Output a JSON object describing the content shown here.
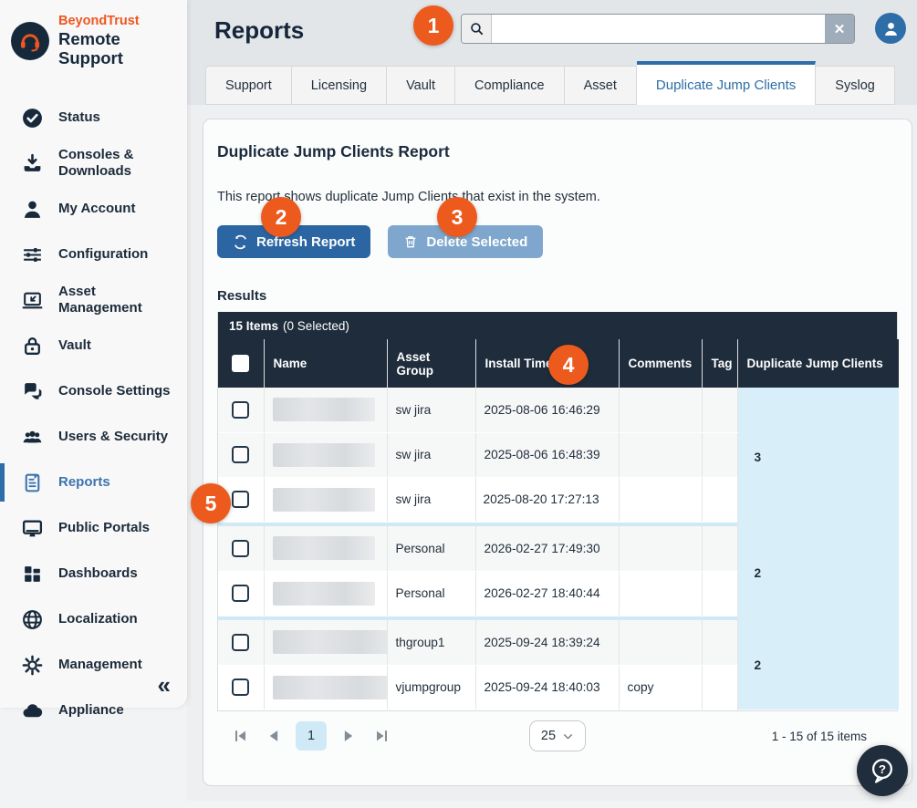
{
  "brand": {
    "line1": "BeyondTrust",
    "line2": "Remote Support"
  },
  "sidebar": {
    "items": [
      {
        "label": "Status",
        "icon": "status"
      },
      {
        "label": "Consoles & Downloads",
        "icon": "downloads"
      },
      {
        "label": "My Account",
        "icon": "account"
      },
      {
        "label": "Configuration",
        "icon": "configuration"
      },
      {
        "label": "Asset Management",
        "icon": "asset-management"
      },
      {
        "label": "Vault",
        "icon": "vault"
      },
      {
        "label": "Console Settings",
        "icon": "console-settings"
      },
      {
        "label": "Users & Security",
        "icon": "users-security"
      },
      {
        "label": "Reports",
        "icon": "reports",
        "active": true
      },
      {
        "label": "Public Portals",
        "icon": "public-portals"
      },
      {
        "label": "Dashboards",
        "icon": "dashboards"
      },
      {
        "label": "Localization",
        "icon": "localization"
      },
      {
        "label": "Management",
        "icon": "management"
      },
      {
        "label": "Appliance",
        "icon": "appliance"
      }
    ],
    "collapse_glyph": "«"
  },
  "header": {
    "title": "Reports",
    "search": {
      "value": "",
      "clear_glyph": "✕"
    }
  },
  "tabs": [
    {
      "label": "Support"
    },
    {
      "label": "Licensing"
    },
    {
      "label": "Vault"
    },
    {
      "label": "Compliance"
    },
    {
      "label": "Asset"
    },
    {
      "label": "Duplicate Jump Clients",
      "active": true
    },
    {
      "label": "Syslog"
    }
  ],
  "report": {
    "title": "Duplicate Jump Clients Report",
    "description": "This report shows duplicate Jump Clients that exist in the system.",
    "buttons": {
      "refresh": "Refresh Report",
      "delete": "Delete Selected"
    },
    "results_label": "Results"
  },
  "table": {
    "summary": {
      "count_label": "15 Items",
      "selected_label": "(0 Selected)"
    },
    "columns": [
      "Name",
      "Asset Group",
      "Install Time",
      "Comments",
      "Tag",
      "Duplicate Jump Clients"
    ],
    "groups": [
      {
        "duplicate_count": "3",
        "rows": [
          {
            "name": "",
            "asset_group": "sw jira",
            "install_time": "2025-08-06 16:46:29",
            "comments": "",
            "tag": ""
          },
          {
            "name": "",
            "asset_group": "sw jira",
            "install_time": "2025-08-06 16:48:39",
            "comments": "",
            "tag": ""
          },
          {
            "name": "",
            "asset_group": "sw jira",
            "install_time": "2025-08-20 17:27:13",
            "comments": "",
            "tag": "",
            "single_line": true
          }
        ]
      },
      {
        "duplicate_count": "2",
        "rows": [
          {
            "name": "",
            "asset_group": "Personal",
            "install_time": "2026-02-27 17:49:30",
            "comments": "",
            "tag": ""
          },
          {
            "name": "",
            "asset_group": "Personal",
            "install_time": "2026-02-27 18:40:44",
            "comments": "",
            "tag": ""
          }
        ]
      },
      {
        "duplicate_count": "2",
        "rows": [
          {
            "name": "",
            "asset_group": "thgroup1",
            "install_time": "2025-09-24 18:39:24",
            "comments": "",
            "tag": ""
          },
          {
            "name": "",
            "asset_group": "vjumpgroup",
            "install_time": "2025-09-24 18:40:03",
            "comments": "copy",
            "tag": ""
          }
        ]
      }
    ]
  },
  "pagination": {
    "page": "1",
    "page_size": "25",
    "range_label": "1 - 15 of 15 items"
  },
  "callouts": [
    {
      "n": "1"
    },
    {
      "n": "2"
    },
    {
      "n": "3"
    },
    {
      "n": "4"
    },
    {
      "n": "5"
    }
  ],
  "colors": {
    "accent_orange": "#EC5A1D",
    "navy": "#1E2C3C",
    "blue": "#2D6DA8",
    "disabled_blue": "#7FA7CD",
    "duplicate_column_bg": "#D8EEF8"
  }
}
